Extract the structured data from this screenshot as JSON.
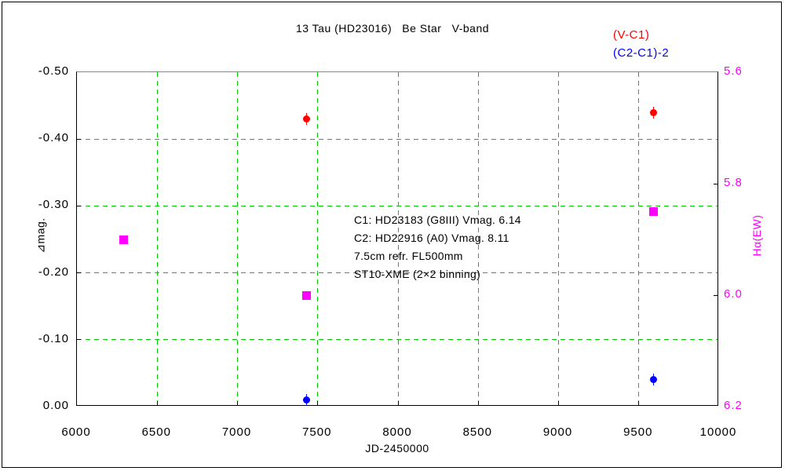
{
  "legend": {
    "items": [
      {
        "label": "(V-C1)",
        "color": "#ff0000"
      },
      {
        "label": "(C2-C1)-2",
        "color": "#0000ff"
      }
    ]
  },
  "annotation": {
    "lines": [
      "C1: HD23183 (G8III) Vmag. 6.14",
      "C2: HD22916 (A0) Vmag. 8.11",
      "7.5cm refr. FL500mm",
      "ST10-XME (2×2 binning)"
    ]
  },
  "chart_data": {
    "type": "scatter",
    "title": "13 Tau (HD23016)   Be Star   V-band",
    "xlabel": "JD-2450000",
    "ylabel_left": "⊿mag.",
    "ylabel_right": "Hα(EW)",
    "x_range": [
      6000,
      10000
    ],
    "x_ticks": [
      "6000",
      "6500",
      "7000",
      "7500",
      "8000",
      "8500",
      "9000",
      "9500",
      "10000"
    ],
    "y_left_range_top_to_bottom": [
      -0.5,
      0.0
    ],
    "y_left_ticks": [
      "-0.50",
      "-0.40",
      "-0.30",
      "-0.20",
      "-0.10",
      "0.00"
    ],
    "y_right_range_top_to_bottom": [
      5.6,
      6.2
    ],
    "y_right_ticks": [
      "5.6",
      "5.8",
      "6.0",
      "6.2"
    ],
    "grid": true,
    "grid_color": "#00c800",
    "axis_right_color": "#ff00ff",
    "legend_position": "top-right",
    "series": [
      {
        "name": "(V-C1)",
        "axis": "left",
        "marker": "circle",
        "color": "#ff0000",
        "points": [
          {
            "x": 7430,
            "y": -0.43
          },
          {
            "x": 9590,
            "y": -0.44
          }
        ]
      },
      {
        "name": "(C2-C1)-2",
        "axis": "left",
        "marker": "circle",
        "color": "#0000ff",
        "points": [
          {
            "x": 7430,
            "y": -0.01
          },
          {
            "x": 9590,
            "y": -0.04
          }
        ]
      },
      {
        "name": "Hα (EW)",
        "axis": "right",
        "marker": "square",
        "color": "#ff00ff",
        "points": [
          {
            "x": 6290,
            "y": 5.9
          },
          {
            "x": 7430,
            "y": 6.0
          },
          {
            "x": 9590,
            "y": 5.85
          }
        ]
      }
    ]
  }
}
